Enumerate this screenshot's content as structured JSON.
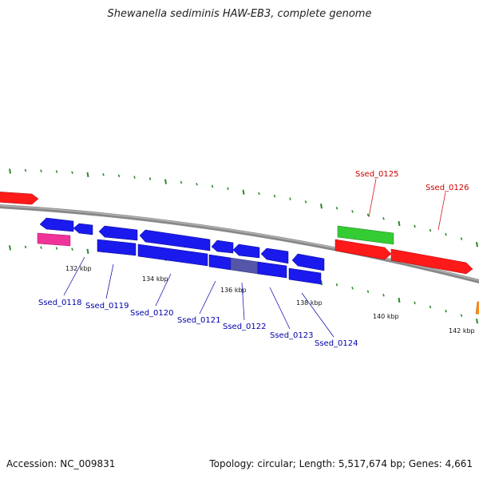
{
  "title": "Shewanella sediminis HAW-EB3, complete genome",
  "footer": {
    "accession": "Accession: NC_009831",
    "summary": "Topology: circular; Length: 5,517,674 bp; Genes: 4,661"
  },
  "colors": {
    "forward_red": "#ff1a1a",
    "reverse_blue": "#1a1aee",
    "rna_green": "#33cc33",
    "magenta": "#ee3399",
    "backbone": "#888888",
    "tick": "#2a8a2a",
    "label_blue": "#0000aa",
    "label_red": "#cc0000"
  },
  "scale_labels": [
    "132 kbp",
    "134 kbp",
    "136 kbp",
    "138 kbp",
    "140 kbp",
    "142 kbp"
  ],
  "gene_labels": [
    {
      "text": "Ssed_0118",
      "strand": "reverse"
    },
    {
      "text": "Ssed_0119",
      "strand": "reverse"
    },
    {
      "text": "Ssed_0120",
      "strand": "reverse"
    },
    {
      "text": "Ssed_0121",
      "strand": "reverse"
    },
    {
      "text": "Ssed_0122",
      "strand": "reverse"
    },
    {
      "text": "Ssed_0123",
      "strand": "reverse"
    },
    {
      "text": "Ssed_0124",
      "strand": "reverse"
    },
    {
      "text": "Ssed_0125",
      "strand": "forward"
    },
    {
      "text": "Ssed_0126",
      "strand": "forward"
    }
  ]
}
